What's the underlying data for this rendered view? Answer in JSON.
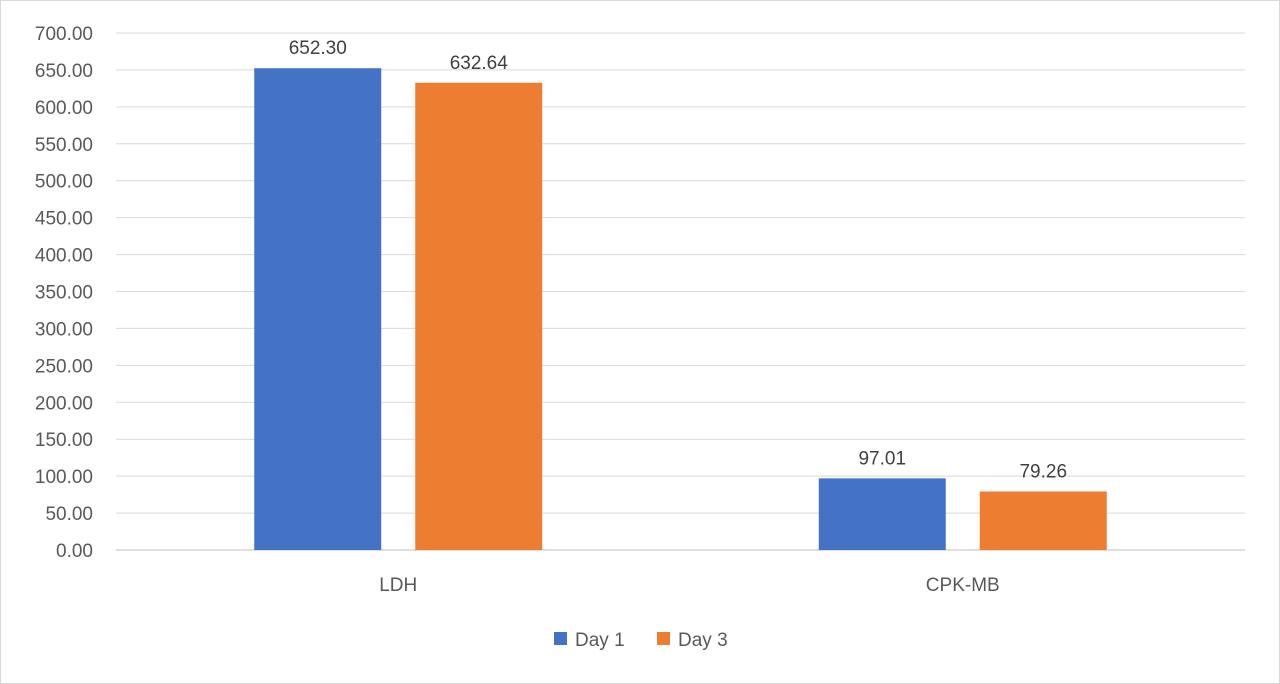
{
  "chart_data": {
    "type": "bar",
    "categories": [
      "LDH",
      "CPK-MB"
    ],
    "series": [
      {
        "name": "Day 1",
        "values": [
          652.3,
          97.01
        ],
        "value_labels": [
          "652.30",
          "97.01"
        ],
        "color": "#4472C4"
      },
      {
        "name": "Day 3",
        "values": [
          632.64,
          79.26
        ],
        "value_labels": [
          "632.64",
          "79.26"
        ],
        "color": "#ED7D31"
      }
    ],
    "ylim": [
      0,
      700
    ],
    "ytick_step": 50,
    "ytick_labels": [
      "0.00",
      "50.00",
      "100.00",
      "150.00",
      "200.00",
      "250.00",
      "300.00",
      "350.00",
      "400.00",
      "450.00",
      "500.00",
      "550.00",
      "600.00",
      "650.00",
      "700.00"
    ],
    "grid": true,
    "legend": "bottom-center"
  }
}
